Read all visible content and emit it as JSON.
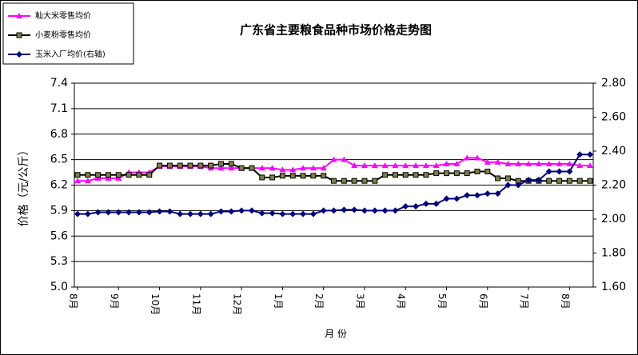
{
  "chart_data": {
    "type": "line",
    "title": "广东省主要粮食品种市场价格走势图",
    "xlabel": "月 份",
    "ylabel": "价格（元/公斤）",
    "legend": "upper left",
    "grid": true,
    "categories": [
      "8月",
      null,
      null,
      null,
      "9月",
      null,
      null,
      null,
      "10月",
      null,
      null,
      null,
      "11月",
      null,
      null,
      null,
      "12月",
      null,
      null,
      null,
      "1月",
      null,
      null,
      null,
      "2月",
      null,
      null,
      null,
      "3月",
      null,
      null,
      null,
      "4月",
      null,
      null,
      null,
      "5月",
      null,
      null,
      null,
      "6月",
      null,
      null,
      null,
      "7月",
      null,
      null,
      null,
      "8月",
      null,
      null
    ],
    "ylim": [
      5.0,
      7.4
    ],
    "yticks": [
      {
        "value": 5.0,
        "label": "5.0"
      },
      5.3,
      5.6,
      5.9,
      6.2,
      6.5,
      6.8,
      7.1,
      7.4
    ],
    "y2lim": [
      1.6,
      2.8
    ],
    "y2ticks": [
      {
        "value": 1.6,
        "label": "1.60"
      },
      {
        "value": 1.8,
        "label": "1.80"
      },
      {
        "value": 2.0,
        "label": "2.00"
      },
      {
        "value": 2.2,
        "label": "2.20"
      },
      {
        "value": 2.4,
        "label": "2.40"
      },
      {
        "value": 2.6,
        "label": "2.60"
      },
      {
        "value": 2.8,
        "label": "2.80"
      }
    ],
    "series": [
      {
        "name": "籼大米零售均价",
        "color": "#ff00ff",
        "marker": "triangle",
        "values": [
          6.25,
          6.25,
          6.28,
          6.28,
          6.28,
          6.35,
          6.35,
          6.35,
          6.42,
          6.42,
          6.42,
          6.42,
          6.42,
          6.4,
          6.4,
          6.4,
          6.4,
          6.4,
          6.4,
          6.4,
          6.38,
          6.38,
          6.4,
          6.4,
          6.4,
          6.5,
          6.5,
          6.43,
          6.43,
          6.43,
          6.43,
          6.43,
          6.43,
          6.43,
          6.43,
          6.43,
          6.45,
          6.45,
          6.52,
          6.52,
          6.47,
          6.47,
          6.45,
          6.45,
          6.45,
          6.45,
          6.45,
          6.45,
          6.45,
          6.43,
          6.43
        ]
      },
      {
        "name": "小麦粉零售均价",
        "color": "#000000",
        "marker": "square",
        "values": [
          6.32,
          6.32,
          6.32,
          6.32,
          6.32,
          6.32,
          6.32,
          6.32,
          6.43,
          6.43,
          6.43,
          6.43,
          6.43,
          6.43,
          6.45,
          6.45,
          6.4,
          6.4,
          6.29,
          6.29,
          6.31,
          6.31,
          6.31,
          6.31,
          6.31,
          6.25,
          6.25,
          6.25,
          6.25,
          6.25,
          6.32,
          6.32,
          6.32,
          6.32,
          6.32,
          6.34,
          6.34,
          6.34,
          6.34,
          6.36,
          6.36,
          6.28,
          6.28,
          6.25,
          6.25,
          6.25,
          6.25,
          6.25,
          6.25,
          6.25,
          6.25
        ]
      },
      {
        "name": "玉米入厂均价(右轴)",
        "color": "#000080",
        "marker": "diamond",
        "axis": "y2",
        "values": [
          2.03,
          2.03,
          2.04,
          2.04,
          2.04,
          2.04,
          2.04,
          2.04,
          2.045,
          2.045,
          2.03,
          2.03,
          2.03,
          2.03,
          2.045,
          2.045,
          2.05,
          2.05,
          2.035,
          2.035,
          2.03,
          2.03,
          2.03,
          2.03,
          2.05,
          2.05,
          2.055,
          2.055,
          2.05,
          2.05,
          2.05,
          2.05,
          2.075,
          2.075,
          2.09,
          2.09,
          2.12,
          2.12,
          2.14,
          2.14,
          2.15,
          2.15,
          2.2,
          2.2,
          2.23,
          2.23,
          2.28,
          2.28,
          2.28,
          2.38,
          2.38
        ]
      }
    ]
  }
}
